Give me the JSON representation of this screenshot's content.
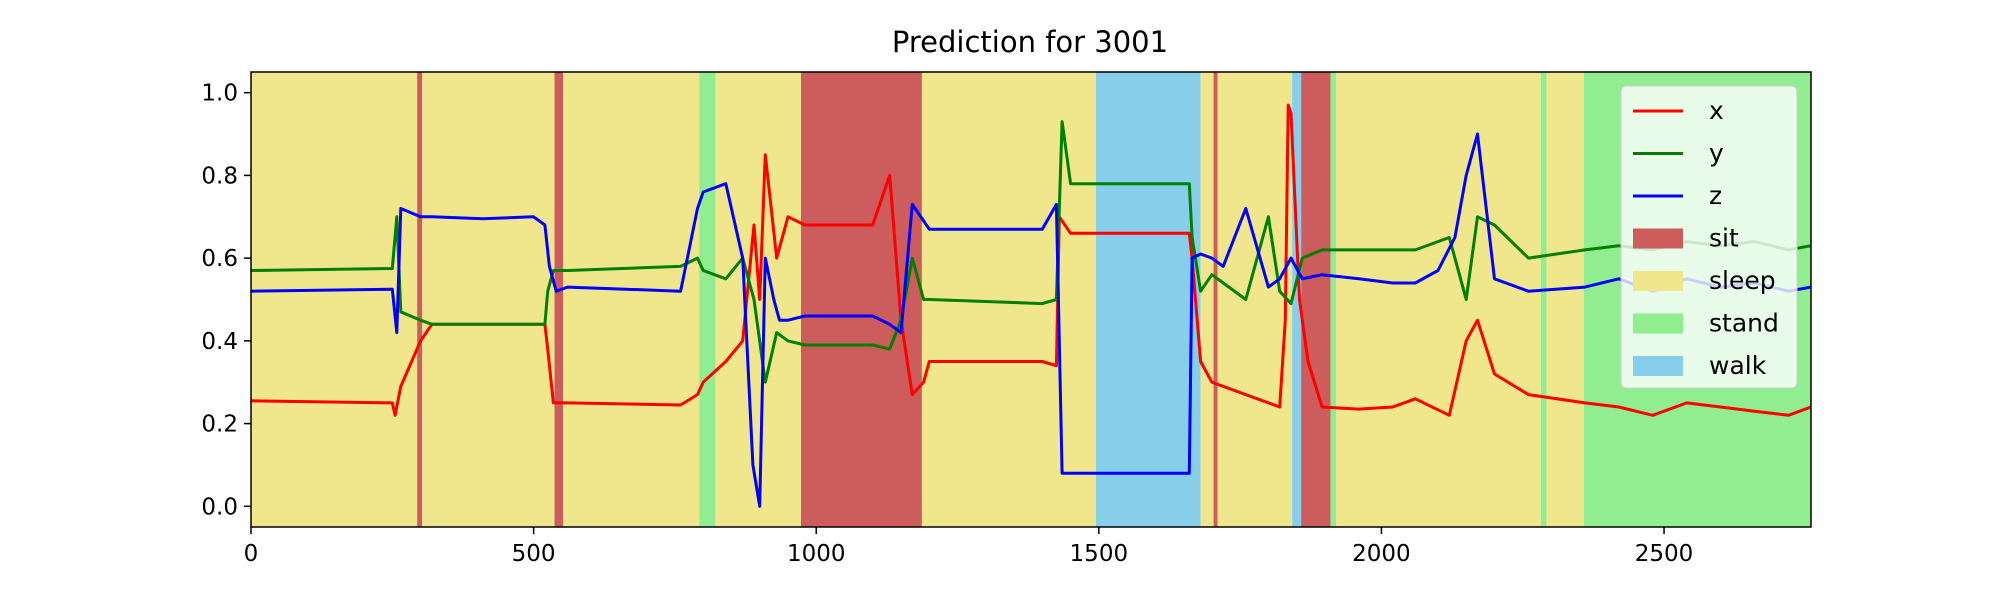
{
  "chart_data": {
    "type": "line",
    "title": "Prediction for 3001",
    "xlabel": "",
    "ylabel": "",
    "xlim": [
      0,
      2760
    ],
    "ylim": [
      -0.05,
      1.05
    ],
    "x_ticks": [
      0,
      500,
      1000,
      1500,
      2000,
      2500
    ],
    "y_ticks": [
      0.0,
      0.2,
      0.4,
      0.6,
      0.8,
      1.0
    ],
    "x_tick_labels": [
      "0",
      "500",
      "1000",
      "1500",
      "2000",
      "2500"
    ],
    "y_tick_labels": [
      "0.0",
      "0.2",
      "0.4",
      "0.6",
      "0.8",
      "1.0"
    ],
    "grid": false,
    "legend_position": "top-right",
    "activity_colors": {
      "sit": "#cd5c5c",
      "sleep": "#f0e68c",
      "stand": "#90ee90",
      "walk": "#87ceeb"
    },
    "activity_segments": [
      {
        "label": "sleep",
        "start": 0,
        "end": 294
      },
      {
        "label": "sit",
        "start": 294,
        "end": 303
      },
      {
        "label": "sleep",
        "start": 303,
        "end": 537
      },
      {
        "label": "sit",
        "start": 537,
        "end": 552
      },
      {
        "label": "sleep",
        "start": 552,
        "end": 793
      },
      {
        "label": "stand",
        "start": 793,
        "end": 822
      },
      {
        "label": "sleep",
        "start": 822,
        "end": 973
      },
      {
        "label": "sit",
        "start": 973,
        "end": 1187
      },
      {
        "label": "sleep",
        "start": 1187,
        "end": 1495
      },
      {
        "label": "walk",
        "start": 1495,
        "end": 1680
      },
      {
        "label": "sleep",
        "start": 1680,
        "end": 1703
      },
      {
        "label": "sit",
        "start": 1703,
        "end": 1710
      },
      {
        "label": "sleep",
        "start": 1710,
        "end": 1842
      },
      {
        "label": "walk",
        "start": 1842,
        "end": 1858
      },
      {
        "label": "sit",
        "start": 1858,
        "end": 1910
      },
      {
        "label": "stand",
        "start": 1910,
        "end": 1920
      },
      {
        "label": "sleep",
        "start": 1920,
        "end": 2282
      },
      {
        "label": "stand",
        "start": 2282,
        "end": 2292
      },
      {
        "label": "sleep",
        "start": 2292,
        "end": 2358
      },
      {
        "label": "stand",
        "start": 2358,
        "end": 2760
      }
    ],
    "series": [
      {
        "name": "x",
        "color": "#ff0000",
        "x": [
          0,
          250,
          255,
          265,
          300,
          320,
          520,
          525,
          535,
          560,
          760,
          790,
          800,
          840,
          870,
          890,
          900,
          910,
          930,
          950,
          980,
          1100,
          1130,
          1150,
          1170,
          1190,
          1200,
          1400,
          1425,
          1430,
          1450,
          1660,
          1665,
          1680,
          1700,
          1760,
          1820,
          1830,
          1835,
          1840,
          1855,
          1870,
          1895,
          1960,
          2020,
          2060,
          2120,
          2150,
          2170,
          2200,
          2260,
          2360,
          2420,
          2480,
          2540,
          2600,
          2660,
          2720,
          2760
        ],
        "y": [
          0.255,
          0.25,
          0.22,
          0.29,
          0.4,
          0.44,
          0.44,
          0.38,
          0.25,
          0.25,
          0.245,
          0.27,
          0.3,
          0.35,
          0.4,
          0.68,
          0.5,
          0.85,
          0.6,
          0.7,
          0.68,
          0.68,
          0.8,
          0.45,
          0.27,
          0.3,
          0.35,
          0.35,
          0.34,
          0.7,
          0.66,
          0.66,
          0.6,
          0.35,
          0.3,
          0.27,
          0.24,
          0.45,
          0.97,
          0.95,
          0.5,
          0.35,
          0.24,
          0.235,
          0.24,
          0.26,
          0.22,
          0.4,
          0.45,
          0.32,
          0.27,
          0.25,
          0.24,
          0.22,
          0.25,
          0.24,
          0.23,
          0.22,
          0.24
        ]
      },
      {
        "name": "y",
        "color": "#008000",
        "x": [
          0,
          250,
          258,
          265,
          300,
          320,
          520,
          525,
          535,
          560,
          760,
          790,
          800,
          840,
          870,
          890,
          910,
          930,
          950,
          980,
          1100,
          1130,
          1150,
          1170,
          1190,
          1200,
          1400,
          1425,
          1435,
          1450,
          1660,
          1665,
          1680,
          1700,
          1760,
          1800,
          1820,
          1840,
          1860,
          1895,
          1960,
          2020,
          2060,
          2120,
          2150,
          2170,
          2200,
          2260,
          2360,
          2420,
          2480,
          2540,
          2600,
          2660,
          2720,
          2760
        ],
        "y": [
          0.57,
          0.575,
          0.7,
          0.47,
          0.45,
          0.44,
          0.44,
          0.52,
          0.57,
          0.57,
          0.58,
          0.6,
          0.57,
          0.55,
          0.6,
          0.5,
          0.3,
          0.42,
          0.4,
          0.39,
          0.39,
          0.38,
          0.45,
          0.6,
          0.5,
          0.5,
          0.49,
          0.5,
          0.93,
          0.78,
          0.78,
          0.65,
          0.52,
          0.56,
          0.5,
          0.7,
          0.52,
          0.49,
          0.6,
          0.62,
          0.62,
          0.62,
          0.62,
          0.65,
          0.5,
          0.7,
          0.68,
          0.6,
          0.62,
          0.63,
          0.62,
          0.64,
          0.63,
          0.64,
          0.62,
          0.63
        ]
      },
      {
        "name": "z",
        "color": "#0000ff",
        "x": [
          0,
          250,
          258,
          265,
          300,
          320,
          410,
          500,
          520,
          528,
          540,
          560,
          760,
          790,
          800,
          840,
          870,
          888,
          900,
          910,
          925,
          935,
          950,
          980,
          1100,
          1130,
          1150,
          1170,
          1190,
          1200,
          1400,
          1425,
          1435,
          1450,
          1660,
          1665,
          1680,
          1700,
          1720,
          1760,
          1800,
          1820,
          1840,
          1860,
          1895,
          1960,
          2020,
          2060,
          2100,
          2130,
          2150,
          2170,
          2200,
          2260,
          2360,
          2420,
          2480,
          2540,
          2600,
          2660,
          2720,
          2760
        ],
        "y": [
          0.52,
          0.525,
          0.42,
          0.72,
          0.7,
          0.7,
          0.695,
          0.7,
          0.68,
          0.58,
          0.52,
          0.53,
          0.52,
          0.72,
          0.76,
          0.78,
          0.6,
          0.1,
          0.0,
          0.6,
          0.5,
          0.45,
          0.45,
          0.46,
          0.46,
          0.44,
          0.42,
          0.73,
          0.69,
          0.67,
          0.67,
          0.73,
          0.08,
          0.08,
          0.08,
          0.6,
          0.61,
          0.6,
          0.58,
          0.72,
          0.53,
          0.55,
          0.6,
          0.55,
          0.56,
          0.55,
          0.54,
          0.54,
          0.57,
          0.65,
          0.8,
          0.9,
          0.55,
          0.52,
          0.53,
          0.55,
          0.52,
          0.55,
          0.53,
          0.54,
          0.52,
          0.53
        ]
      }
    ],
    "legend": [
      {
        "label": "x",
        "kind": "line",
        "color": "#ff0000"
      },
      {
        "label": "y",
        "kind": "line",
        "color": "#008000"
      },
      {
        "label": "z",
        "kind": "line",
        "color": "#0000ff"
      },
      {
        "label": "sit",
        "kind": "patch",
        "color": "#cd5c5c"
      },
      {
        "label": "sleep",
        "kind": "patch",
        "color": "#f0e68c"
      },
      {
        "label": "stand",
        "kind": "patch",
        "color": "#90ee90"
      },
      {
        "label": "walk",
        "kind": "patch",
        "color": "#87ceeb"
      }
    ]
  }
}
